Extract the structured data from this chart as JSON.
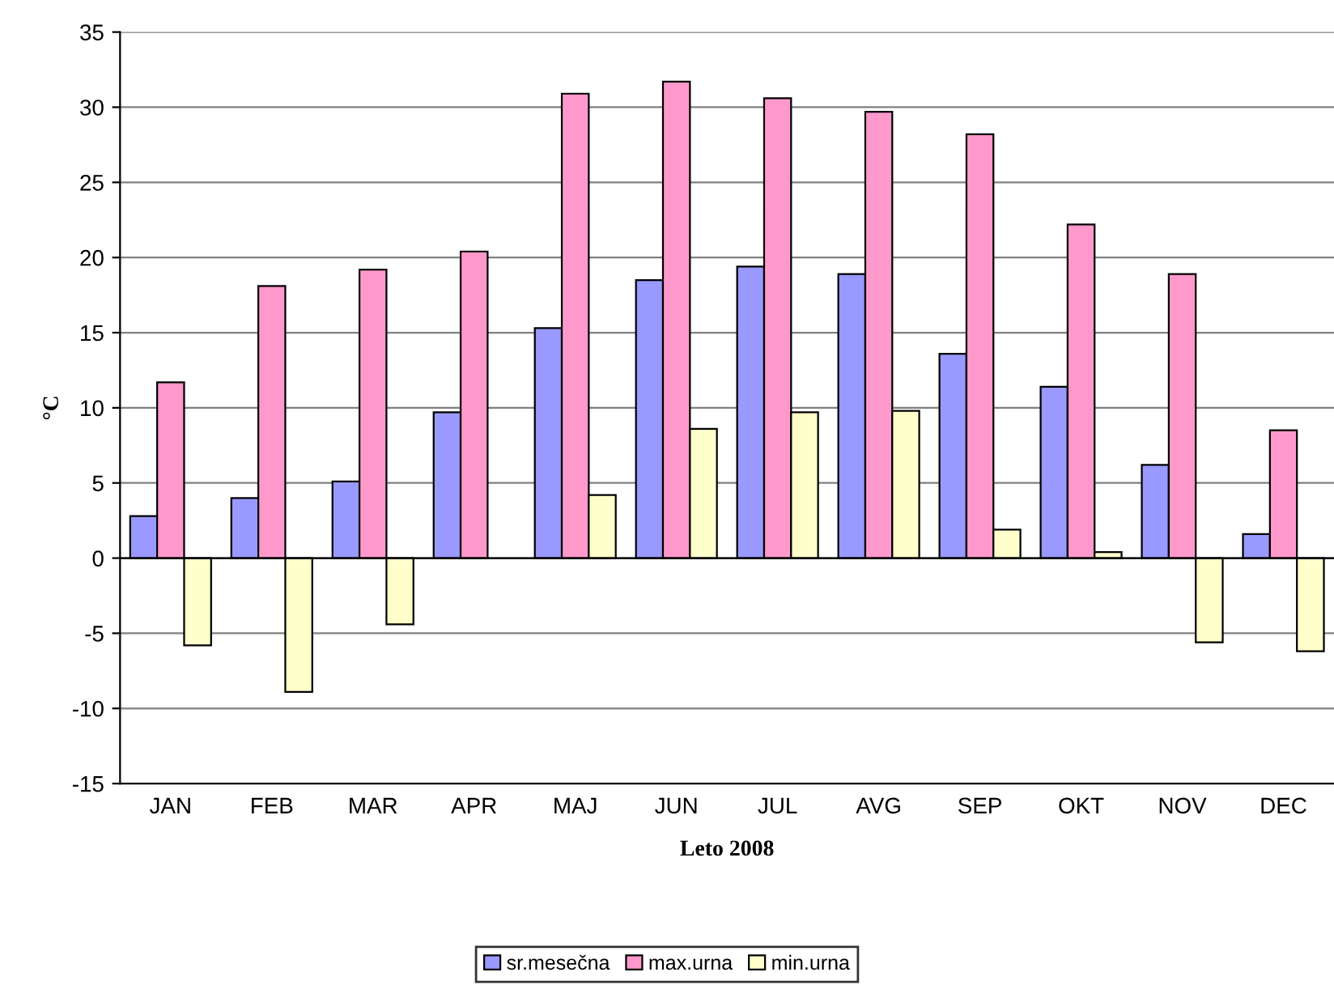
{
  "chart_data": {
    "type": "bar",
    "xlabel": "Leto 2008",
    "ylabel": "°C",
    "categories": [
      "JAN",
      "FEB",
      "MAR",
      "APR",
      "MAJ",
      "JUN",
      "JUL",
      "AVG",
      "SEP",
      "OKT",
      "NOV",
      "DEC"
    ],
    "series": [
      {
        "name": "sr.mesečna",
        "color": "#9999ff",
        "values": [
          2.8,
          4.0,
          5.1,
          9.7,
          15.3,
          18.5,
          19.4,
          18.9,
          13.6,
          11.4,
          6.2,
          1.6
        ]
      },
      {
        "name": "max.urna",
        "color": "#ff99cc",
        "values": [
          11.7,
          18.1,
          19.2,
          20.4,
          30.9,
          31.7,
          30.6,
          29.7,
          28.2,
          22.2,
          18.9,
          8.5
        ]
      },
      {
        "name": "min.urna",
        "color": "#ffffcc",
        "values": [
          -5.8,
          -8.9,
          -4.4,
          null,
          4.2,
          8.6,
          9.7,
          9.8,
          1.9,
          0.4,
          -5.6,
          -6.2
        ]
      }
    ],
    "ylim": [
      -15,
      35
    ],
    "yticks": [
      -15,
      -10,
      -5,
      0,
      5,
      10,
      15,
      20,
      25,
      30,
      35
    ],
    "grid": "y",
    "legend": "bottom"
  }
}
